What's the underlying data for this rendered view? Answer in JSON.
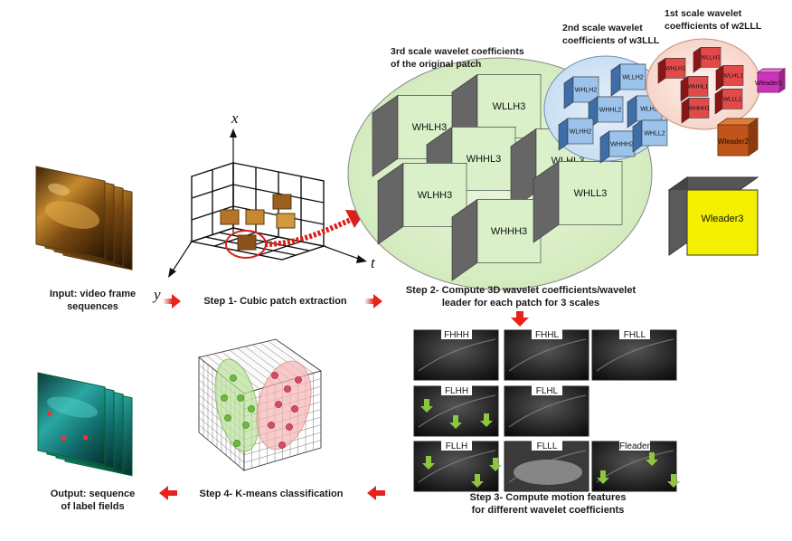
{
  "steps": {
    "input": {
      "line1": "Input: video frame",
      "line2": "sequences"
    },
    "step1": "Step 1- Cubic patch extraction",
    "step2": {
      "line1": "Step 2- Compute 3D wavelet coefficients/wavelet",
      "line2": "leader for each patch for 3 scales"
    },
    "step3": {
      "line1": "Step 3- Compute motion features",
      "line2": "for different wavelet coefficients"
    },
    "step4": "Step 4- K-means classification",
    "output": {
      "line1": "Output: sequence",
      "line2": "of label fields"
    }
  },
  "axes": {
    "x": "x",
    "y": "y",
    "t": "t"
  },
  "scale_titles": {
    "third": {
      "line1": "3rd scale wavelet coefficients",
      "line2": "of the original patch"
    },
    "second": {
      "line1": "2nd scale wavelet",
      "line2": "coefficients of w3LLL"
    },
    "first": {
      "line1": "1st scale wavelet",
      "line2": "coefficients of w2LLL"
    }
  },
  "cubes_third": [
    "WHLH3",
    "WLLH3",
    "WHHL3",
    "WLHL3",
    "WLHH3",
    "WHHH3",
    "WHLL3"
  ],
  "cubes_second": [
    "WHLH2",
    "WLLH2",
    "WHHL2",
    "WLH2",
    "WLHH2",
    "WHHH2",
    "WHLL2"
  ],
  "cubes_first": [
    "WHLH1",
    "WLLH1",
    "WHHL1",
    "WLHL1",
    "WHHH1",
    "WLLL1"
  ],
  "leaders": {
    "first": "Wleader1",
    "second": "Wleader2",
    "third": "Wleader3"
  },
  "feature_panels": [
    "FHHH",
    "FHHL",
    "FHLL",
    "FLHH",
    "FLHL",
    "FLLH",
    "FLLL",
    "Fleader"
  ],
  "colors": {
    "arrow": "#e8231c",
    "cube_light": "#d9f0c8",
    "cube_gray": "#666666",
    "cube_yellow": "#f5f000",
    "cube_blue": "#6fa6dd",
    "cube_red": "#d9272b",
    "cube_orange": "#c0541a",
    "cube_magenta": "#cc33bb",
    "green_arrow": "#8dc63f"
  }
}
